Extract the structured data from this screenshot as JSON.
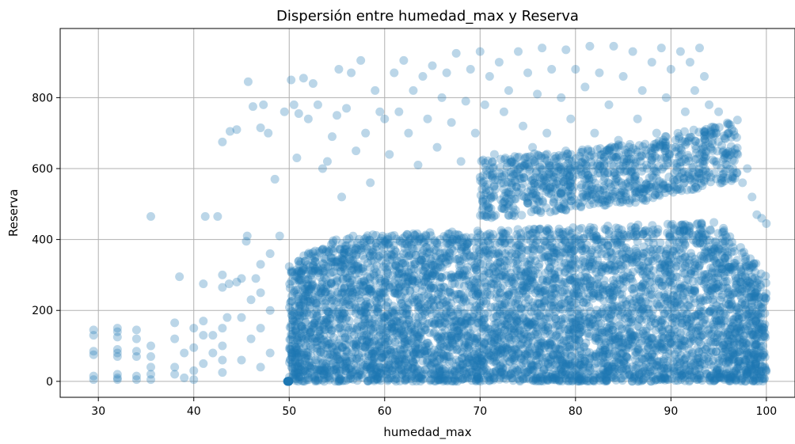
{
  "chart_data": {
    "type": "scatter",
    "title": "Dispersión entre humedad_max y Reserva",
    "xlabel": "humedad_max",
    "ylabel": "Reserva",
    "xlim": [
      26,
      103
    ],
    "ylim": [
      -45,
      995
    ],
    "xticks": [
      30,
      40,
      50,
      60,
      70,
      80,
      90,
      100
    ],
    "yticks": [
      0,
      200,
      400,
      600,
      800
    ],
    "grid": true,
    "legend": "none",
    "marker_color": "#1f77b4",
    "marker_alpha": 0.3,
    "series": [
      {
        "points": [
          [
            29.5,
            5
          ],
          [
            29.5,
            15
          ],
          [
            29.5,
            75
          ],
          [
            29.5,
            85
          ],
          [
            29.5,
            130
          ],
          [
            29.5,
            145
          ],
          [
            32,
            5
          ],
          [
            32,
            10
          ],
          [
            32,
            20
          ],
          [
            32,
            70
          ],
          [
            32,
            80
          ],
          [
            32,
            90
          ],
          [
            32,
            125
          ],
          [
            32,
            140
          ],
          [
            32,
            150
          ],
          [
            34,
            5
          ],
          [
            34,
            15
          ],
          [
            34,
            70
          ],
          [
            34,
            85
          ],
          [
            34,
            120
          ],
          [
            34,
            145
          ],
          [
            35.5,
            5
          ],
          [
            35.5,
            20
          ],
          [
            35.5,
            40
          ],
          [
            35.5,
            70
          ],
          [
            35.5,
            100
          ],
          [
            35.5,
            465
          ],
          [
            38,
            20
          ],
          [
            38,
            40
          ],
          [
            38,
            120
          ],
          [
            38,
            165
          ],
          [
            38.5,
            295
          ],
          [
            39,
            10
          ],
          [
            39,
            80
          ],
          [
            40,
            5
          ],
          [
            40,
            30
          ],
          [
            40,
            95
          ],
          [
            40,
            150
          ],
          [
            41,
            50
          ],
          [
            41,
            130
          ],
          [
            41,
            170
          ],
          [
            41,
            275
          ],
          [
            41.2,
            465
          ],
          [
            42,
            80
          ],
          [
            42,
            130
          ],
          [
            42.5,
            465
          ],
          [
            43,
            25
          ],
          [
            43,
            60
          ],
          [
            43,
            100
          ],
          [
            43,
            150
          ],
          [
            43,
            265
          ],
          [
            43,
            300
          ],
          [
            43,
            675
          ],
          [
            43.5,
            180
          ],
          [
            43.7,
            275
          ],
          [
            43.8,
            705
          ],
          [
            44.5,
            280
          ],
          [
            44.5,
            710
          ],
          [
            45,
            60
          ],
          [
            45,
            180
          ],
          [
            45,
            290
          ],
          [
            45.5,
            395
          ],
          [
            45.6,
            410
          ],
          [
            45.7,
            845
          ],
          [
            46,
            120
          ],
          [
            46,
            230
          ],
          [
            46.2,
            775
          ],
          [
            46.5,
            290
          ],
          [
            47,
            40
          ],
          [
            47,
            150
          ],
          [
            47,
            250
          ],
          [
            47,
            330
          ],
          [
            47,
            715
          ],
          [
            47.3,
            780
          ],
          [
            47.8,
            700
          ],
          [
            48,
            80
          ],
          [
            48,
            200
          ],
          [
            48,
            360
          ],
          [
            48.5,
            570
          ],
          [
            49,
            410
          ],
          [
            49.5,
            760
          ],
          [
            50.2,
            850
          ],
          [
            50.5,
            780
          ],
          [
            50.8,
            630
          ],
          [
            51,
            755
          ],
          [
            51.5,
            855
          ],
          [
            52,
            740
          ],
          [
            52.5,
            840
          ],
          [
            53,
            780
          ],
          [
            53.5,
            600
          ],
          [
            54,
            620
          ],
          [
            54.5,
            690
          ],
          [
            55,
            750
          ],
          [
            55.2,
            880
          ],
          [
            55.5,
            520
          ],
          [
            56,
            770
          ],
          [
            56.5,
            870
          ],
          [
            57,
            650
          ],
          [
            57.5,
            905
          ],
          [
            58,
            700
          ],
          [
            58.5,
            560
          ],
          [
            59,
            820
          ],
          [
            59.5,
            760
          ],
          [
            60,
            740
          ],
          [
            60.5,
            640
          ],
          [
            61,
            870
          ],
          [
            61.5,
            760
          ],
          [
            62,
            905
          ],
          [
            62.5,
            700
          ],
          [
            63,
            820
          ],
          [
            63.5,
            610
          ],
          [
            64,
            860
          ],
          [
            64.5,
            740
          ],
          [
            65,
            890
          ],
          [
            65.5,
            660
          ],
          [
            66,
            800
          ],
          [
            66.5,
            870
          ],
          [
            67,
            730
          ],
          [
            67.5,
            925
          ],
          [
            68,
            620
          ],
          [
            68.5,
            790
          ],
          [
            69,
            880
          ],
          [
            69.5,
            700
          ],
          [
            70,
            930
          ],
          [
            70.5,
            780
          ],
          [
            71,
            860
          ],
          [
            71.5,
            640
          ],
          [
            72,
            900
          ],
          [
            72.5,
            760
          ],
          [
            73,
            820
          ],
          [
            73.5,
            580
          ],
          [
            74,
            930
          ],
          [
            74.5,
            720
          ],
          [
            75,
            870
          ],
          [
            75.5,
            660
          ],
          [
            76,
            810
          ],
          [
            76.5,
            940
          ],
          [
            77,
            700
          ],
          [
            77.5,
            880
          ],
          [
            78,
            620
          ],
          [
            78.5,
            800
          ],
          [
            79,
            935
          ],
          [
            79.5,
            740
          ],
          [
            80,
            880
          ],
          [
            80.5,
            600
          ],
          [
            81,
            830
          ],
          [
            81.5,
            945
          ],
          [
            82,
            700
          ],
          [
            82.5,
            870
          ],
          [
            83,
            610
          ],
          [
            83.5,
            780
          ],
          [
            84,
            945
          ],
          [
            84.5,
            680
          ],
          [
            85,
            860
          ],
          [
            85.5,
            560
          ],
          [
            86,
            930
          ],
          [
            86.5,
            740
          ],
          [
            87,
            820
          ],
          [
            87.5,
            600
          ],
          [
            88,
            900
          ],
          [
            88.5,
            700
          ],
          [
            89,
            940
          ],
          [
            89.5,
            800
          ],
          [
            90,
            880
          ],
          [
            90.5,
            660
          ],
          [
            91,
            930
          ],
          [
            91.5,
            760
          ],
          [
            92,
            900
          ],
          [
            92.5,
            820
          ],
          [
            93,
            940
          ],
          [
            93.5,
            860
          ],
          [
            94,
            780
          ],
          [
            94.5,
            700
          ],
          [
            95,
            760
          ],
          [
            95.5,
            650
          ],
          [
            96,
            700
          ],
          [
            96.5,
            600
          ],
          [
            97,
            640
          ],
          [
            97.5,
            560
          ],
          [
            98,
            600
          ],
          [
            98.5,
            520
          ],
          [
            99,
            470
          ],
          [
            99.5,
            460
          ],
          [
            100,
            445
          ]
        ]
      }
    ]
  }
}
